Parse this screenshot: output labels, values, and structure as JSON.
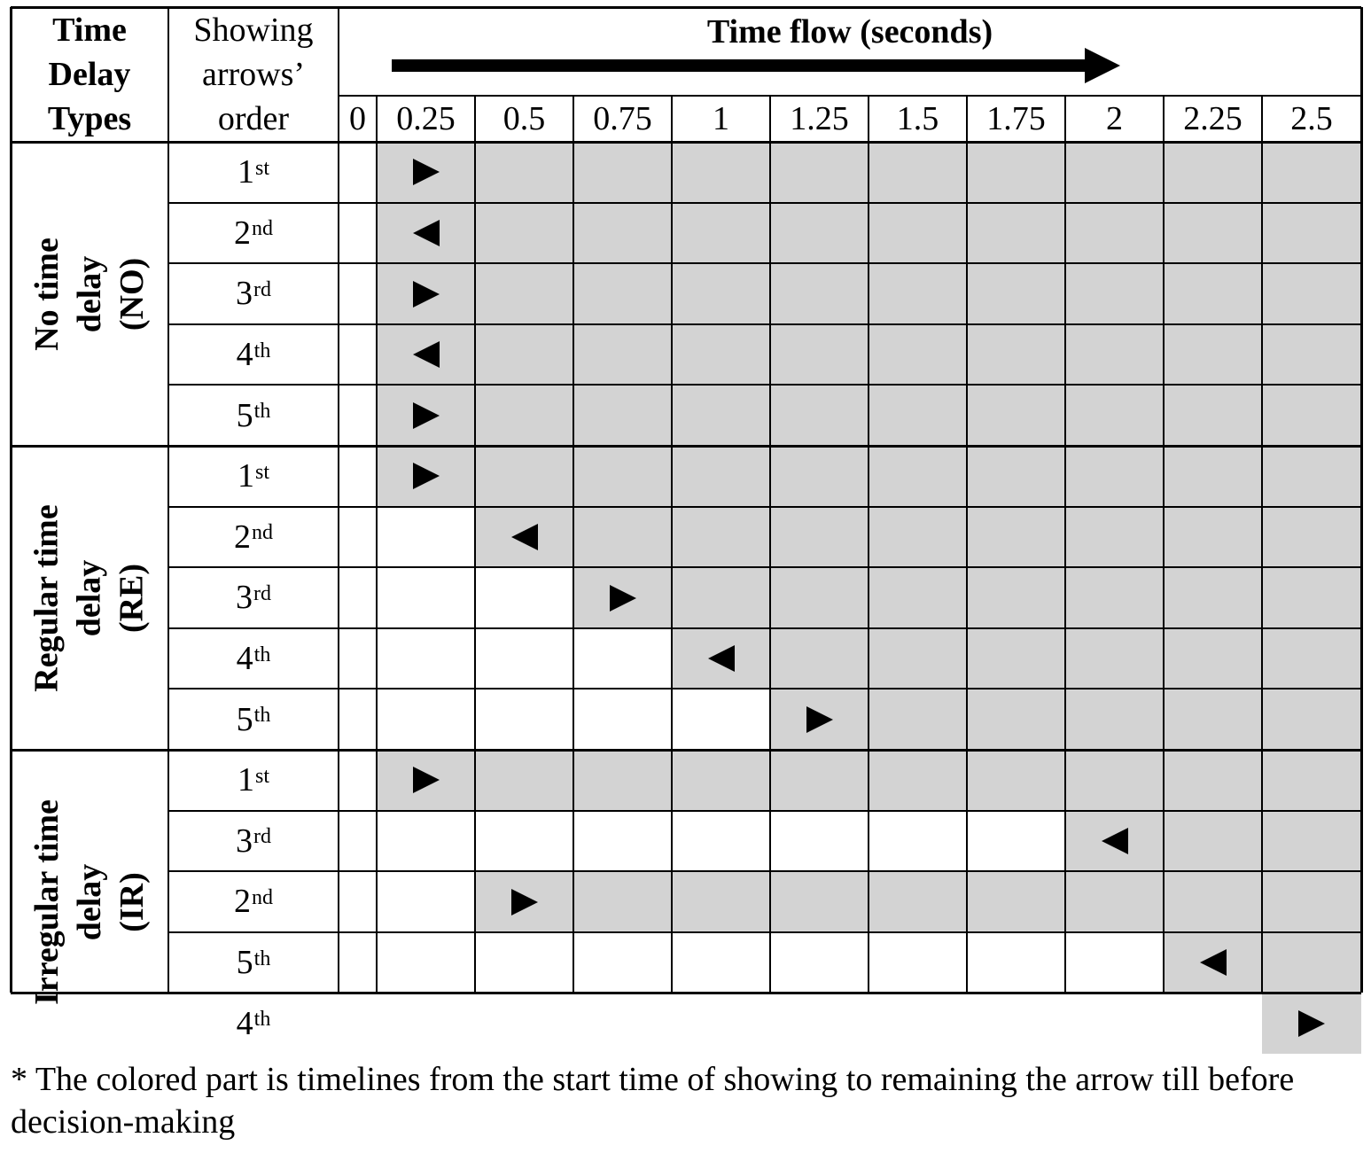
{
  "header": {
    "col1": [
      "Time",
      "Delay",
      "Types"
    ],
    "col2": [
      "Showing",
      "arrows’",
      "order"
    ],
    "timeflow_title": "Time flow (seconds)",
    "time_ticks": [
      "0",
      "0.25",
      "0.5",
      "0.75",
      "1",
      "1.25",
      "1.5",
      "1.75",
      "2",
      "2.25",
      "2.5"
    ]
  },
  "groups": [
    {
      "label": [
        "No time",
        "delay",
        "(NO)"
      ],
      "rows": [
        {
          "num": "1",
          "suffix": "st",
          "start": 0.25,
          "arrow": "right"
        },
        {
          "num": "2",
          "suffix": "nd",
          "start": 0.25,
          "arrow": "left"
        },
        {
          "num": "3",
          "suffix": "rd",
          "start": 0.25,
          "arrow": "right"
        },
        {
          "num": "4",
          "suffix": "th",
          "start": 0.25,
          "arrow": "left"
        },
        {
          "num": "5",
          "suffix": "th",
          "start": 0.25,
          "arrow": "right"
        }
      ]
    },
    {
      "label": [
        "Regular time",
        "delay",
        "(RE)"
      ],
      "rows": [
        {
          "num": "1",
          "suffix": "st",
          "start": 0.25,
          "arrow": "right"
        },
        {
          "num": "2",
          "suffix": "nd",
          "start": 0.5,
          "arrow": "left"
        },
        {
          "num": "3",
          "suffix": "rd",
          "start": 0.75,
          "arrow": "right"
        },
        {
          "num": "4",
          "suffix": "th",
          "start": 1,
          "arrow": "left"
        },
        {
          "num": "5",
          "suffix": "th",
          "start": 1.25,
          "arrow": "right"
        }
      ]
    },
    {
      "label": [
        "Irregular time",
        "delay",
        "(IR)"
      ],
      "rows": [
        {
          "num": "1",
          "suffix": "st",
          "start": 0.25,
          "arrow": "right"
        },
        {
          "num": "3",
          "suffix": "rd",
          "start": 2,
          "arrow": "left"
        },
        {
          "num": "2",
          "suffix": "nd",
          "start": 0.5,
          "arrow": "right"
        },
        {
          "num": "5",
          "suffix": "th",
          "start": 2.25,
          "arrow": "left"
        },
        {
          "num": "4",
          "suffix": "th",
          "start": 2.5,
          "arrow": "right"
        }
      ]
    }
  ],
  "colors": {
    "shade": "#d3d3d3",
    "line": "#000000"
  },
  "footnote": "* The colored part is timelines from the start time of showing to remaining the arrow till before decision-making"
}
